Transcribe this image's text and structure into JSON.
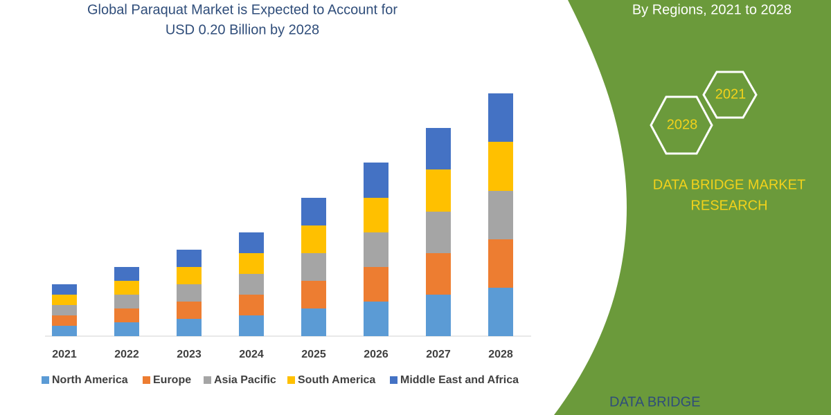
{
  "chart_data": {
    "type": "stacked-bar",
    "title": [
      "Global Paraquat Market is Expected to Account for",
      "USD 0.20 Billion by 2028"
    ],
    "categories": [
      "2021",
      "2022",
      "2023",
      "2024",
      "2025",
      "2026",
      "2027",
      "2028"
    ],
    "series": [
      {
        "name": "North America",
        "color": "#5b9bd5",
        "values": [
          15,
          20,
          25,
          30,
          40,
          50,
          60,
          70
        ]
      },
      {
        "name": "Europe",
        "color": "#ed7d31",
        "values": [
          15,
          20,
          25,
          30,
          40,
          50,
          60,
          70
        ]
      },
      {
        "name": "Asia Pacific",
        "color": "#a5a5a5",
        "values": [
          15,
          20,
          25,
          30,
          40,
          50,
          60,
          70
        ]
      },
      {
        "name": "South America",
        "color": "#ffc000",
        "values": [
          15,
          20,
          25,
          30,
          40,
          50,
          61,
          71
        ]
      },
      {
        "name": "Middle East and Africa",
        "color": "#4472c4",
        "values": [
          15,
          20,
          25,
          30,
          40,
          51,
          60,
          70
        ]
      }
    ]
  },
  "panel": {
    "subtitle": "By Regions, 2021 to 2028",
    "hexagons": [
      "2021",
      "2028"
    ],
    "brand": [
      "DATA BRIDGE MARKET",
      "RESEARCH"
    ],
    "logo": "DATA BRIDGE"
  }
}
